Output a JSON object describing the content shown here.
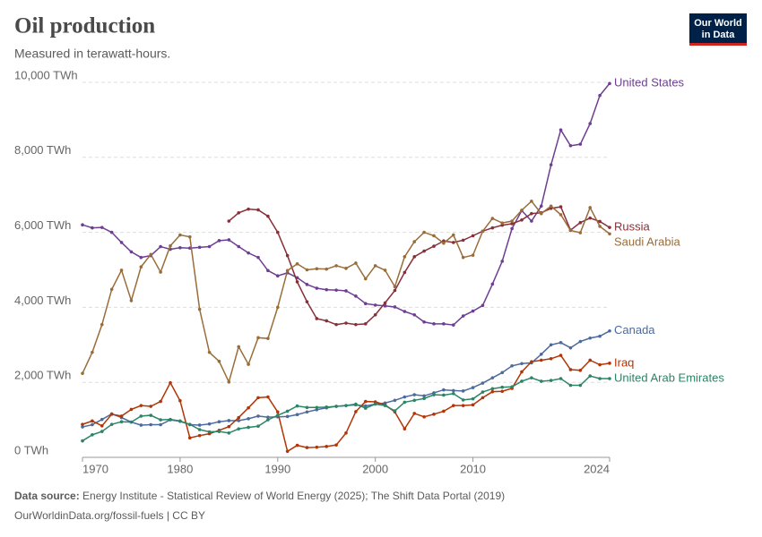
{
  "chart_data": {
    "type": "line",
    "title": "Oil production",
    "subtitle": "Measured in terawatt-hours.",
    "logo": [
      "Our World",
      "in Data"
    ],
    "source_label": "Data source:",
    "source": "Energy Institute - Statistical Review of World Energy (2025); The Shift Data Portal (2019)",
    "footer": "OurWorldinData.org/fossil-fuels | CC BY",
    "x": [
      1970,
      1971,
      1972,
      1973,
      1974,
      1975,
      1976,
      1977,
      1978,
      1979,
      1980,
      1981,
      1982,
      1983,
      1984,
      1985,
      1986,
      1987,
      1988,
      1989,
      1990,
      1991,
      1992,
      1993,
      1994,
      1995,
      1996,
      1997,
      1998,
      1999,
      2000,
      2001,
      2002,
      2003,
      2004,
      2005,
      2006,
      2007,
      2008,
      2009,
      2010,
      2011,
      2012,
      2013,
      2014,
      2015,
      2016,
      2017,
      2018,
      2019,
      2020,
      2021,
      2022,
      2023,
      2024
    ],
    "xlim": [
      1970,
      2024
    ],
    "xticks": [
      1970,
      1980,
      1990,
      2000,
      2010,
      2024
    ],
    "ylim": [
      0,
      10000
    ],
    "yticks": [
      {
        "value": 0,
        "label": "0 TWh"
      },
      {
        "value": 2000,
        "label": "2,000 TWh"
      },
      {
        "value": 4000,
        "label": "4,000 TWh"
      },
      {
        "value": 6000,
        "label": "6,000 TWh"
      },
      {
        "value": 8000,
        "label": "8,000 TWh"
      },
      {
        "value": 10000,
        "label": "10,000 TWh"
      }
    ],
    "grid": true,
    "series": [
      {
        "name": "United States",
        "color": "#6d3e91",
        "values": [
          6200,
          6120,
          6130,
          6000,
          5730,
          5480,
          5330,
          5380,
          5620,
          5550,
          5590,
          5580,
          5600,
          5620,
          5780,
          5800,
          5620,
          5450,
          5330,
          4980,
          4840,
          4920,
          4790,
          4610,
          4510,
          4470,
          4460,
          4440,
          4300,
          4100,
          4060,
          4040,
          4010,
          3890,
          3800,
          3610,
          3560,
          3560,
          3530,
          3770,
          3900,
          4050,
          4620,
          5230,
          6100,
          6580,
          6300,
          6700,
          7800,
          8730,
          8310,
          8350,
          8900,
          9650,
          9970
        ]
      },
      {
        "name": "Russia",
        "color": "#883039",
        "values": [
          null,
          null,
          null,
          null,
          null,
          null,
          null,
          null,
          null,
          null,
          null,
          null,
          null,
          null,
          null,
          6300,
          6520,
          6620,
          6600,
          6430,
          6000,
          5380,
          4680,
          4150,
          3700,
          3640,
          3540,
          3580,
          3540,
          3560,
          3800,
          4120,
          4450,
          4930,
          5350,
          5500,
          5630,
          5770,
          5730,
          5790,
          5910,
          6030,
          6120,
          6190,
          6230,
          6330,
          6500,
          6520,
          6640,
          6680,
          6060,
          6260,
          6380,
          6290,
          6130
        ]
      },
      {
        "name": "Saudi Arabia",
        "color": "#996d39",
        "values": [
          2240,
          2800,
          3540,
          4480,
          4990,
          4180,
          5080,
          5410,
          4940,
          5640,
          5930,
          5880,
          3950,
          2800,
          2560,
          2010,
          2950,
          2480,
          3190,
          3170,
          4000,
          4980,
          5160,
          5000,
          5030,
          5020,
          5110,
          5040,
          5180,
          4760,
          5110,
          4990,
          4550,
          5350,
          5750,
          6000,
          5910,
          5710,
          5930,
          5330,
          5390,
          6030,
          6370,
          6250,
          6300,
          6590,
          6830,
          6500,
          6700,
          6470,
          6050,
          5990,
          6660,
          6160,
          5960
        ]
      },
      {
        "name": "Canada",
        "color": "#4c6a9c",
        "values": [
          810,
          870,
          1010,
          1160,
          1060,
          940,
          860,
          870,
          870,
          1000,
          960,
          870,
          860,
          890,
          950,
          980,
          980,
          1030,
          1100,
          1070,
          1080,
          1090,
          1140,
          1210,
          1270,
          1320,
          1360,
          1380,
          1400,
          1370,
          1420,
          1450,
          1520,
          1610,
          1670,
          1640,
          1720,
          1800,
          1780,
          1770,
          1860,
          1980,
          2120,
          2260,
          2440,
          2500,
          2520,
          2750,
          3000,
          3060,
          2920,
          3090,
          3180,
          3230,
          3370
        ]
      },
      {
        "name": "Iraq",
        "color": "#b13507",
        "values": [
          880,
          970,
          840,
          1150,
          1100,
          1280,
          1380,
          1360,
          1490,
          1990,
          1510,
          520,
          580,
          630,
          720,
          820,
          1060,
          1320,
          1590,
          1610,
          1210,
          160,
          320,
          260,
          270,
          290,
          330,
          650,
          1220,
          1490,
          1480,
          1400,
          1210,
          760,
          1170,
          1080,
          1150,
          1230,
          1380,
          1380,
          1400,
          1590,
          1750,
          1760,
          1840,
          2280,
          2550,
          2590,
          2630,
          2720,
          2340,
          2320,
          2590,
          2470,
          2510
        ]
      },
      {
        "name": "United Arab Emirates",
        "color": "#2c8465",
        "values": [
          440,
          600,
          690,
          880,
          950,
          940,
          1100,
          1120,
          1000,
          1010,
          970,
          880,
          740,
          680,
          690,
          650,
          760,
          800,
          830,
          1000,
          1120,
          1230,
          1370,
          1330,
          1330,
          1340,
          1360,
          1380,
          1420,
          1310,
          1420,
          1380,
          1240,
          1470,
          1520,
          1570,
          1670,
          1660,
          1700,
          1530,
          1560,
          1740,
          1830,
          1870,
          1880,
          2030,
          2120,
          2030,
          2050,
          2100,
          1920,
          1920,
          2170,
          2100,
          2100
        ]
      }
    ]
  }
}
